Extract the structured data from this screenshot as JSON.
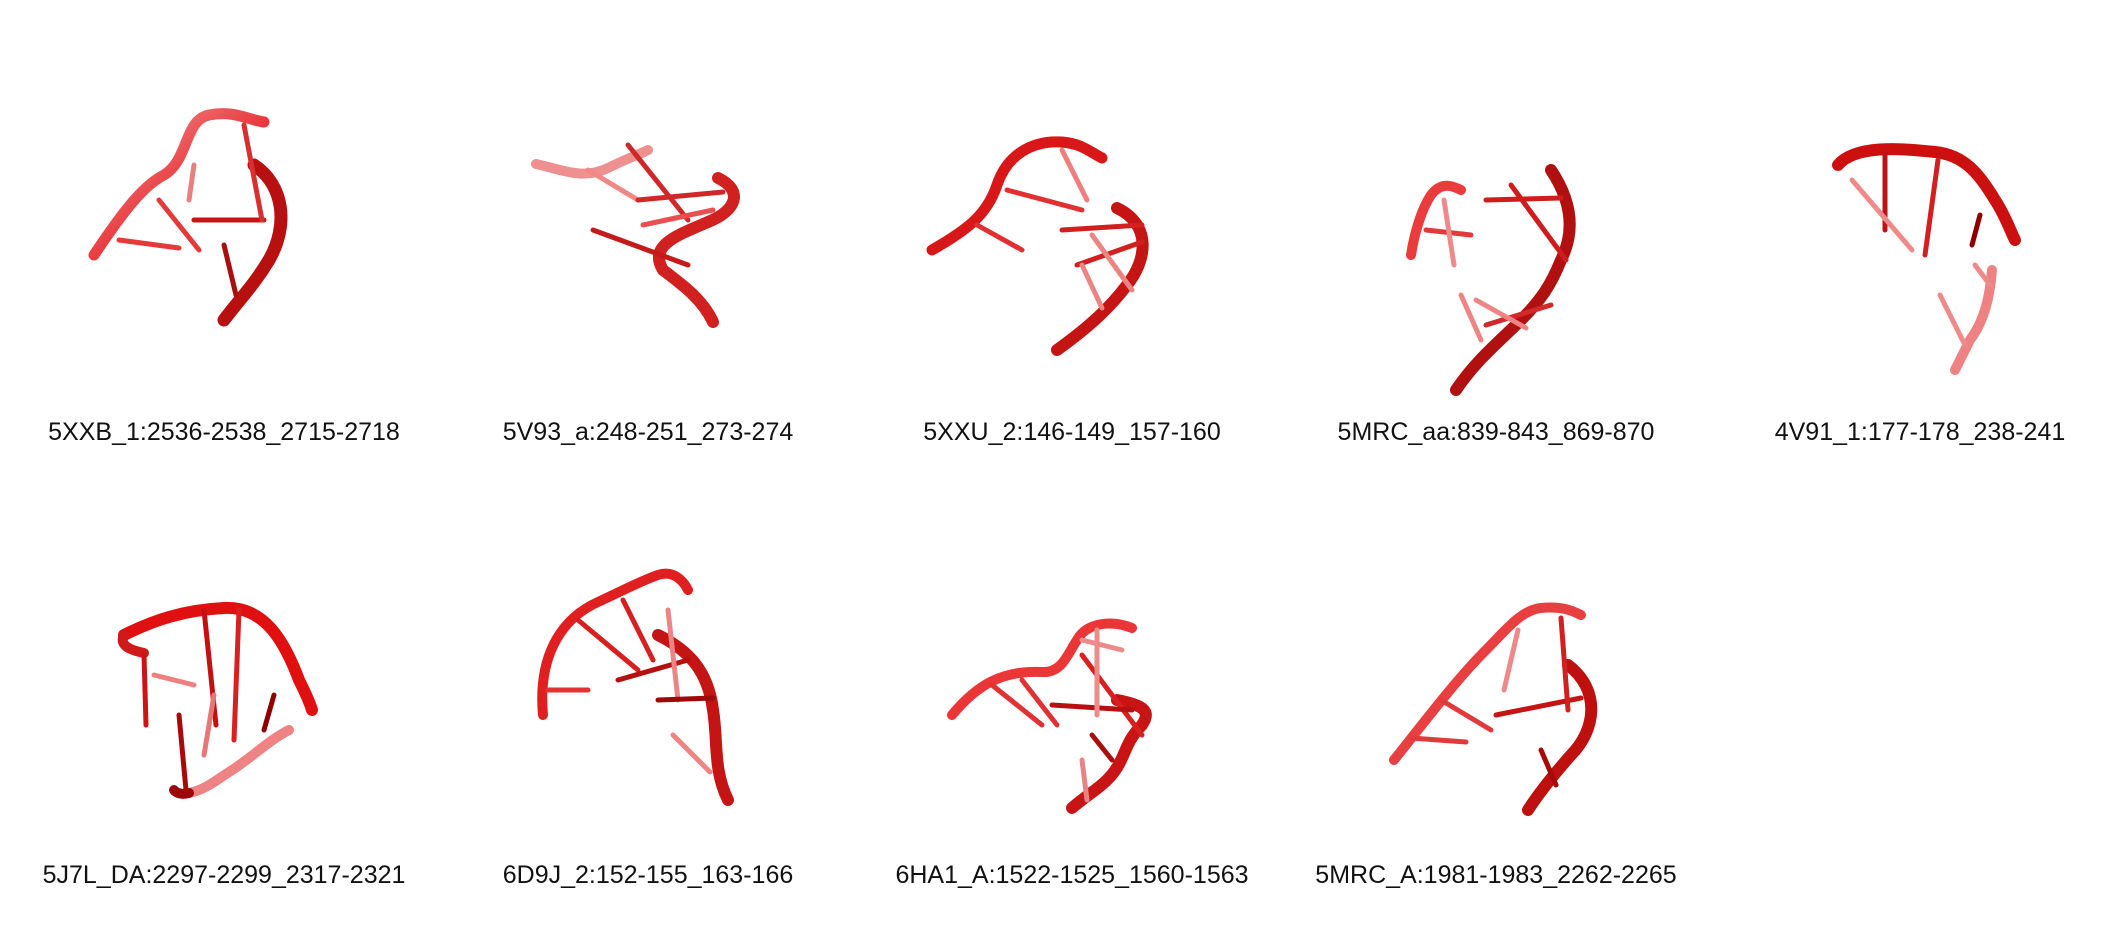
{
  "colors": {
    "background": "#ffffff",
    "strand_light": "#f08c8c",
    "strand_mid": "#ee2a2a",
    "strand_dark": "#8e0000",
    "label_text": "#111111"
  },
  "structures": [
    {
      "label": "5XXB_1:2536-2538_2715-2718"
    },
    {
      "label": "5V93_a:248-251_273-274"
    },
    {
      "label": "5XXU_2:146-149_157-160"
    },
    {
      "label": "5MRC_aa:839-843_869-870"
    },
    {
      "label": "4V91_1:177-178_238-241"
    },
    {
      "label": "5J7L_DA:2297-2299_2317-2321"
    },
    {
      "label": "6D9J_2:152-155_163-166"
    },
    {
      "label": "6HA1_A:1522-1525_1560-1563"
    },
    {
      "label": "5MRC_A:1981-1983_2262-2265"
    }
  ]
}
